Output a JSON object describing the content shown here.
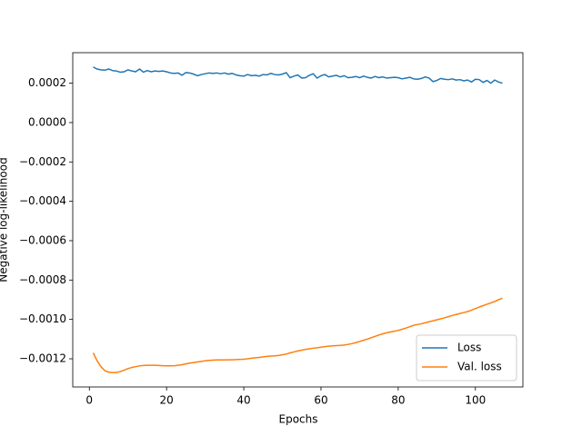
{
  "chart_data": {
    "type": "line",
    "x_label": "Epochs",
    "y_label": "Negative log-likelihood",
    "xlim": [
      -4.3,
      112.3
    ],
    "ylim": [
      -0.001343,
      0.000355
    ],
    "xticks": [
      0,
      20,
      40,
      60,
      80,
      100
    ],
    "yticks": [
      {
        "value": -0.0012,
        "label": "−0.0012"
      },
      {
        "value": -0.001,
        "label": "−0.0010"
      },
      {
        "value": -0.0008,
        "label": "−0.0008"
      },
      {
        "value": -0.0006,
        "label": "−0.0006"
      },
      {
        "value": -0.0004,
        "label": "−0.0004"
      },
      {
        "value": -0.0002,
        "label": "−0.0002"
      },
      {
        "value": 0,
        "label": "0.0000"
      },
      {
        "value": 0.0002,
        "label": "0.0002"
      }
    ],
    "legend": "lower right",
    "x": [
      1,
      2,
      3,
      4,
      5,
      6,
      7,
      8,
      9,
      10,
      11,
      12,
      13,
      14,
      15,
      16,
      17,
      18,
      19,
      20,
      21,
      22,
      23,
      24,
      25,
      26,
      27,
      28,
      29,
      30,
      31,
      32,
      33,
      34,
      35,
      36,
      37,
      38,
      39,
      40,
      41,
      42,
      43,
      44,
      45,
      46,
      47,
      48,
      49,
      50,
      51,
      52,
      53,
      54,
      55,
      56,
      57,
      58,
      59,
      60,
      61,
      62,
      63,
      64,
      65,
      66,
      67,
      68,
      69,
      70,
      71,
      72,
      73,
      74,
      75,
      76,
      77,
      78,
      79,
      80,
      81,
      82,
      83,
      84,
      85,
      86,
      87,
      88,
      89,
      90,
      91,
      92,
      93,
      94,
      95,
      96,
      97,
      98,
      99,
      100,
      101,
      102,
      103,
      104,
      105,
      106,
      107
    ],
    "series": [
      {
        "name": "Loss",
        "color": "#1f77b4",
        "values": [
          0.000282,
          0.000272,
          0.000268,
          0.000266,
          0.000272,
          0.000264,
          0.000262,
          0.000256,
          0.000258,
          0.000268,
          0.000262,
          0.000258,
          0.000272,
          0.000256,
          0.000264,
          0.000258,
          0.000262,
          0.00026,
          0.000262,
          0.000258,
          0.000252,
          0.00025,
          0.000252,
          0.00024,
          0.000254,
          0.000252,
          0.000246,
          0.000238,
          0.000244,
          0.000248,
          0.000252,
          0.00025,
          0.000252,
          0.000248,
          0.000252,
          0.000246,
          0.00025,
          0.000242,
          0.000238,
          0.000236,
          0.000244,
          0.000238,
          0.00024,
          0.000236,
          0.000244,
          0.000242,
          0.00025,
          0.000244,
          0.000242,
          0.000246,
          0.000254,
          0.000228,
          0.000236,
          0.000242,
          0.000226,
          0.000228,
          0.00024,
          0.000248,
          0.000226,
          0.000238,
          0.000244,
          0.000232,
          0.000236,
          0.00024,
          0.000232,
          0.000238,
          0.000228,
          0.00023,
          0.000234,
          0.000228,
          0.000236,
          0.00023,
          0.000226,
          0.000234,
          0.000228,
          0.000232,
          0.000226,
          0.000228,
          0.00023,
          0.000228,
          0.000222,
          0.000226,
          0.00023,
          0.000222,
          0.00022,
          0.000224,
          0.000232,
          0.000226,
          0.000208,
          0.000214,
          0.000224,
          0.00022,
          0.000218,
          0.000222,
          0.000216,
          0.000218,
          0.000212,
          0.000216,
          0.000206,
          0.00022,
          0.000218,
          0.000204,
          0.000214,
          0.0002,
          0.000216,
          0.000206,
          0.0002
        ]
      },
      {
        "name": "Val. loss",
        "color": "#ff7f0e",
        "values": [
          -0.00117,
          -0.00121,
          -0.00124,
          -0.00126,
          -0.001268,
          -0.00127,
          -0.00127,
          -0.001265,
          -0.001258,
          -0.00125,
          -0.001244,
          -0.00124,
          -0.001236,
          -0.001234,
          -0.001233,
          -0.001233,
          -0.001233,
          -0.001234,
          -0.001235,
          -0.001236,
          -0.001236,
          -0.001235,
          -0.001233,
          -0.00123,
          -0.001226,
          -0.001222,
          -0.001219,
          -0.001216,
          -0.001213,
          -0.00121,
          -0.001208,
          -0.001207,
          -0.001206,
          -0.001206,
          -0.001206,
          -0.001205,
          -0.001205,
          -0.001204,
          -0.001203,
          -0.001202,
          -0.0012,
          -0.001197,
          -0.001195,
          -0.001193,
          -0.00119,
          -0.001188,
          -0.001186,
          -0.001185,
          -0.001183,
          -0.00118,
          -0.001176,
          -0.00117,
          -0.001165,
          -0.00116,
          -0.001156,
          -0.001152,
          -0.001149,
          -0.001146,
          -0.001144,
          -0.001141,
          -0.001138,
          -0.001136,
          -0.001134,
          -0.001133,
          -0.001132,
          -0.00113,
          -0.001127,
          -0.001123,
          -0.001118,
          -0.001112,
          -0.001106,
          -0.0011,
          -0.001093,
          -0.001086,
          -0.001079,
          -0.001073,
          -0.001068,
          -0.001064,
          -0.00106,
          -0.001056,
          -0.00105,
          -0.001044,
          -0.001037,
          -0.00103,
          -0.001026,
          -0.001022,
          -0.001017,
          -0.001012,
          -0.001007,
          -0.001002,
          -0.000997,
          -0.000992,
          -0.000986,
          -0.00098,
          -0.000975,
          -0.00097,
          -0.000965,
          -0.00096,
          -0.000953,
          -0.000945,
          -0.000937,
          -0.00093,
          -0.000923,
          -0.000916,
          -0.000909,
          -0.0009,
          -0.000892
        ]
      }
    ]
  }
}
